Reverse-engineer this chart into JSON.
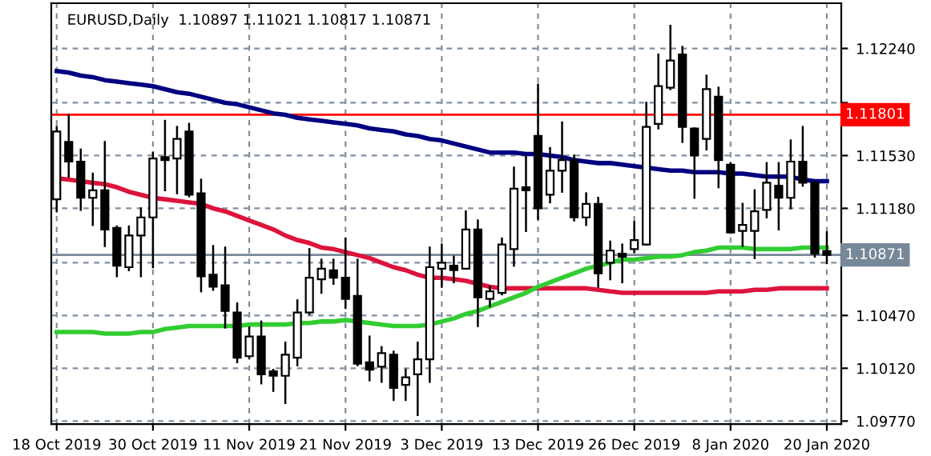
{
  "chart_data": {
    "type": "candlestick",
    "title": "EURUSD,Daily  1.10897 1.11021 1.10817 1.10871",
    "categories": [
      "18 Oct 2019",
      null,
      null,
      null,
      null,
      null,
      null,
      null,
      "30 Oct 2019",
      null,
      null,
      null,
      null,
      null,
      null,
      null,
      "11 Nov 2019",
      null,
      null,
      null,
      null,
      null,
      null,
      null,
      "21 Nov 2019",
      null,
      null,
      null,
      null,
      null,
      null,
      null,
      "3 Dec 2019",
      null,
      null,
      null,
      null,
      null,
      null,
      null,
      "13 Dec 2019",
      null,
      null,
      null,
      null,
      null,
      null,
      null,
      "26 Dec 2019",
      null,
      null,
      null,
      null,
      null,
      null,
      null,
      "8 Jan 2020",
      null,
      null,
      null,
      null,
      null,
      null,
      null,
      "20 Jan 2020"
    ],
    "ohlc": [
      [
        1.1124,
        1.1172,
        1.1116,
        1.1169
      ],
      [
        1.1162,
        1.118,
        1.1139,
        1.1149
      ],
      [
        1.1149,
        1.1157,
        1.1117,
        1.1125
      ],
      [
        1.1125,
        1.1141,
        1.1107,
        1.113
      ],
      [
        1.113,
        1.1162,
        1.1093,
        1.1104
      ],
      [
        1.1105,
        1.1106,
        1.1073,
        1.108
      ],
      [
        1.1079,
        1.1106,
        1.1077,
        1.11
      ],
      [
        1.11,
        1.1118,
        1.1073,
        1.1112
      ],
      [
        1.1112,
        1.1155,
        1.1079,
        1.1151
      ],
      [
        1.1152,
        1.1176,
        1.113,
        1.115
      ],
      [
        1.1151,
        1.1172,
        1.1128,
        1.1164
      ],
      [
        1.1169,
        1.1174,
        1.1126,
        1.1127
      ],
      [
        1.1128,
        1.1137,
        1.1063,
        1.1073
      ],
      [
        1.1074,
        1.1093,
        1.1064,
        1.1066
      ],
      [
        1.1067,
        1.1092,
        1.1039,
        1.105
      ],
      [
        1.1049,
        1.1055,
        1.1016,
        1.1019
      ],
      [
        1.102,
        1.1039,
        1.1019,
        1.1033
      ],
      [
        1.1033,
        1.1043,
        1.1002,
        1.1008
      ],
      [
        1.101,
        1.1011,
        1.0997,
        1.1007
      ],
      [
        1.1007,
        1.1029,
        1.0989,
        1.1021
      ],
      [
        1.1019,
        1.1057,
        1.1014,
        1.1049
      ],
      [
        1.1049,
        1.1091,
        1.1048,
        1.1072
      ],
      [
        1.1071,
        1.1084,
        1.1062,
        1.1078
      ],
      [
        1.1077,
        1.1084,
        1.1068,
        1.1072
      ],
      [
        1.1072,
        1.1098,
        1.1052,
        1.1058
      ],
      [
        1.106,
        1.1084,
        1.1014,
        1.1015
      ],
      [
        1.1016,
        1.1033,
        1.1004,
        1.1011
      ],
      [
        1.1013,
        1.1026,
        1.1003,
        1.1022
      ],
      [
        1.1021,
        1.1023,
        1.0991,
        1.0999
      ],
      [
        1.1001,
        1.1011,
        1.0991,
        1.1006
      ],
      [
        1.1008,
        1.1029,
        1.0981,
        1.1018
      ],
      [
        1.1018,
        1.1092,
        1.1003,
        1.1079
      ],
      [
        1.1078,
        1.1094,
        1.1066,
        1.1082
      ],
      [
        1.108,
        1.1086,
        1.1069,
        1.1077
      ],
      [
        1.1078,
        1.1116,
        1.1078,
        1.1104
      ],
      [
        1.1104,
        1.111,
        1.104,
        1.1059
      ],
      [
        1.1058,
        1.1066,
        1.1053,
        1.1063
      ],
      [
        1.1062,
        1.1098,
        1.1061,
        1.1094
      ],
      [
        1.1091,
        1.1145,
        1.108,
        1.1131
      ],
      [
        1.1132,
        1.1153,
        1.1103,
        1.113
      ],
      [
        1.1166,
        1.12,
        1.1111,
        1.1118
      ],
      [
        1.1127,
        1.1158,
        1.1122,
        1.1143
      ],
      [
        1.1143,
        1.1175,
        1.1129,
        1.115
      ],
      [
        1.115,
        1.1153,
        1.111,
        1.1112
      ],
      [
        1.1112,
        1.1128,
        1.1107,
        1.1121
      ],
      [
        1.1121,
        1.1125,
        1.1066,
        1.1075
      ],
      [
        1.1082,
        1.1096,
        1.1071,
        1.109
      ],
      [
        1.1088,
        1.1094,
        1.1069,
        1.1086
      ],
      [
        1.1091,
        1.1109,
        1.1089,
        1.1097
      ],
      [
        1.1094,
        1.1188,
        1.1094,
        1.1172
      ],
      [
        1.1174,
        1.122,
        1.1171,
        1.1199
      ],
      [
        1.1198,
        1.1239,
        1.1197,
        1.1216
      ],
      [
        1.122,
        1.1225,
        1.1162,
        1.1172
      ],
      [
        1.1171,
        1.1171,
        1.1125,
        1.1153
      ],
      [
        1.1164,
        1.1206,
        1.1157,
        1.1197
      ],
      [
        1.1192,
        1.1198,
        1.1132,
        1.115
      ],
      [
        1.1147,
        1.1148,
        1.1102,
        1.1102
      ],
      [
        1.1103,
        1.1121,
        1.1093,
        1.1107
      ],
      [
        1.1103,
        1.113,
        1.1085,
        1.1116
      ],
      [
        1.1117,
        1.1148,
        1.1112,
        1.1135
      ],
      [
        1.1133,
        1.1148,
        1.1104,
        1.1125
      ],
      [
        1.1125,
        1.1163,
        1.1118,
        1.1149
      ],
      [
        1.1149,
        1.1172,
        1.1133,
        1.1135
      ],
      [
        1.1135,
        1.1136,
        1.1086,
        1.1088
      ],
      [
        1.10897,
        1.11021,
        1.10817,
        1.10871
      ]
    ],
    "series": [
      {
        "type": "line",
        "color": "#000080",
        "values": [
          1.1209,
          1.1208,
          1.1206,
          1.1205,
          1.1203,
          1.1202,
          1.1201,
          1.12,
          1.1199,
          1.1197,
          1.1195,
          1.1194,
          1.1192,
          1.119,
          1.1188,
          1.1187,
          1.1185,
          1.1183,
          1.1181,
          1.118,
          1.1178,
          1.1177,
          1.1176,
          1.1175,
          1.1174,
          1.1173,
          1.1171,
          1.117,
          1.1169,
          1.1167,
          1.1166,
          1.1164,
          1.1163,
          1.1161,
          1.1159,
          1.1157,
          1.1155,
          1.1155,
          1.1155,
          1.1154,
          1.1154,
          1.1153,
          1.1152,
          1.115,
          1.1149,
          1.1148,
          1.1148,
          1.1147,
          1.1146,
          1.1145,
          1.1144,
          1.1143,
          1.1143,
          1.1142,
          1.1142,
          1.1142,
          1.1141,
          1.1141,
          1.114,
          1.1139,
          1.1139,
          1.1139,
          1.1137,
          1.1136,
          1.1136
        ]
      },
      {
        "type": "line",
        "color": "#dc143c",
        "values": [
          1.1138,
          1.1137,
          1.1136,
          1.1135,
          1.1134,
          1.1132,
          1.1129,
          1.1127,
          1.1125,
          1.1124,
          1.1123,
          1.1122,
          1.1121,
          1.1118,
          1.1116,
          1.1113,
          1.111,
          1.1107,
          1.1104,
          1.11,
          1.1097,
          1.1095,
          1.1092,
          1.1091,
          1.1089,
          1.1087,
          1.1085,
          1.1082,
          1.1079,
          1.1077,
          1.1074,
          1.1072,
          1.1072,
          1.1071,
          1.107,
          1.1068,
          1.1066,
          1.1065,
          1.1065,
          1.1065,
          1.1065,
          1.1065,
          1.1065,
          1.1065,
          1.1065,
          1.1064,
          1.1063,
          1.1062,
          1.1062,
          1.1062,
          1.1062,
          1.1062,
          1.1062,
          1.1062,
          1.1062,
          1.1063,
          1.1063,
          1.1063,
          1.1064,
          1.1064,
          1.1065,
          1.1065,
          1.1065,
          1.1065,
          1.1065
        ]
      },
      {
        "type": "line",
        "color": "#32cd32",
        "values": [
          1.1036,
          1.1036,
          1.1036,
          1.1036,
          1.1035,
          1.1035,
          1.1035,
          1.1036,
          1.1036,
          1.1038,
          1.1039,
          1.104,
          1.104,
          1.104,
          1.104,
          1.104,
          1.1041,
          1.1041,
          1.1041,
          1.1041,
          1.1042,
          1.1042,
          1.1043,
          1.1043,
          1.1044,
          1.1043,
          1.1042,
          1.1041,
          1.104,
          1.104,
          1.104,
          1.1041,
          1.1043,
          1.1045,
          1.1048,
          1.105,
          1.1053,
          1.1056,
          1.1059,
          1.1062,
          1.1066,
          1.1069,
          1.1072,
          1.1075,
          1.1078,
          1.108,
          1.1082,
          1.1084,
          1.1084,
          1.1085,
          1.1086,
          1.1086,
          1.1087,
          1.1089,
          1.109,
          1.1092,
          1.1092,
          1.1092,
          1.1091,
          1.1091,
          1.1091,
          1.1091,
          1.1092,
          1.1092,
          1.1092
        ]
      }
    ],
    "ylim": [
      1.0975,
      1.1254
    ],
    "yticks": [
      {
        "value": 1.0977,
        "label": "1.09770"
      },
      {
        "value": 1.1012,
        "label": "1.10120"
      },
      {
        "value": 1.1047,
        "label": "1.10470"
      },
      {
        "value": 1.1082,
        "label": null
      },
      {
        "value": 1.1118,
        "label": "1.11180"
      },
      {
        "value": 1.1153,
        "label": "1.11530"
      },
      {
        "value": 1.1188,
        "label": null
      },
      {
        "value": 1.1224,
        "label": "1.12240"
      }
    ],
    "ref_lines": [
      {
        "axis": "y",
        "value": 1.11801,
        "label": "1.11801",
        "color": "#ff0000"
      },
      {
        "axis": "y",
        "value": 1.10871,
        "label": "1.10871",
        "color": "#778899"
      }
    ],
    "grid": true
  }
}
